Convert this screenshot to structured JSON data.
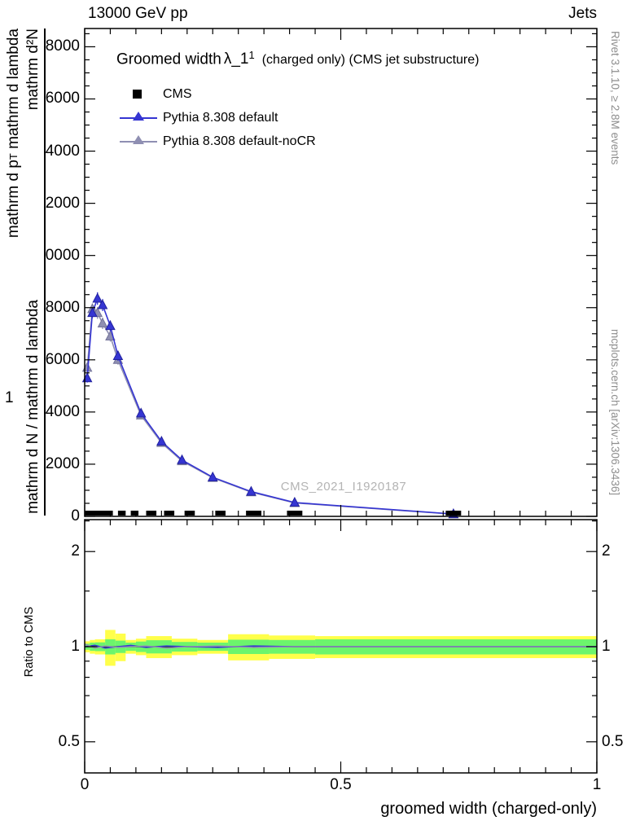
{
  "header": {
    "left": "13000 GeV pp",
    "right": "Jets"
  },
  "title": {
    "prefix": "Groomed width",
    "symbol": "λ_1",
    "sup": "1",
    "suffix": "(charged only) (CMS jet substructure)"
  },
  "legend": {
    "items": [
      {
        "label": "CMS",
        "marker": "square",
        "color": "#000000"
      },
      {
        "label": "Pythia 8.308 default",
        "marker": "triangle-line",
        "color": "#3535d2"
      },
      {
        "label": "Pythia 8.308 default-noCR",
        "marker": "triangle-line",
        "color": "#8f8fb2"
      }
    ]
  },
  "watermark": "CMS_2021_I1920187",
  "side_notes": {
    "top_right": "Rivet 3.1.10, ≥ 2.8M events",
    "bottom_right": "mcplots.cern.ch [arXiv:1306.3436]"
  },
  "axis_labels": {
    "x": "groomed width (charged-only)",
    "ratio_y": "Ratio to CMS",
    "y_numerator": "mathrm d²N",
    "y_den_a": "mathrm d p",
    "y_den_sub": "T",
    "y_den_b": " mathrm d lambda",
    "y_one": "1",
    "y_lower": "mathrm d N / mathrm d lambda"
  },
  "chart_data": {
    "type": "line",
    "title": "Groomed width λ_1^1 (charged only) (CMS jet substructure)",
    "xlabel": "groomed width (charged-only)",
    "ylabel": "1/N mathrm d²N / mathrm d p_T mathrm d lambda",
    "xlim": [
      0,
      1
    ],
    "ylim": [
      0,
      18700
    ],
    "grid": false,
    "legend_position": "top-left",
    "xticks": [
      {
        "v": 0,
        "label": "0"
      },
      {
        "v": 0.5,
        "label": "0.5"
      },
      {
        "v": 1,
        "label": "1"
      }
    ],
    "yticks": [
      {
        "v": 0,
        "label": "0"
      },
      {
        "v": 2000,
        "label": "2000"
      },
      {
        "v": 4000,
        "label": "4000"
      },
      {
        "v": 6000,
        "label": "6000"
      },
      {
        "v": 8000,
        "label": "8000"
      },
      {
        "v": 10000,
        "label": "0000"
      },
      {
        "v": 12000,
        "label": "2000"
      },
      {
        "v": 14000,
        "label": "4000"
      },
      {
        "v": 16000,
        "label": "6000"
      },
      {
        "v": 18000,
        "label": "8000"
      }
    ],
    "series": [
      {
        "name": "CMS",
        "type": "bins",
        "color": "#000000",
        "bins": [
          [
            0.0,
            0.055
          ],
          [
            0.065,
            0.08
          ],
          [
            0.09,
            0.105
          ],
          [
            0.12,
            0.14
          ],
          [
            0.155,
            0.175
          ],
          [
            0.195,
            0.215
          ],
          [
            0.255,
            0.275
          ],
          [
            0.315,
            0.345
          ],
          [
            0.395,
            0.425
          ],
          [
            0.705,
            0.735
          ]
        ],
        "y": 0
      },
      {
        "name": "Pythia 8.308 default",
        "type": "line-marker",
        "color": "#3535d2",
        "edge": "#22229e",
        "x": [
          0.005,
          0.015,
          0.025,
          0.035,
          0.05,
          0.065,
          0.11,
          0.15,
          0.19,
          0.25,
          0.325,
          0.41,
          0.72
        ],
        "y": [
          5300,
          7800,
          8350,
          8100,
          7300,
          6150,
          3950,
          2870,
          2160,
          1500,
          950,
          530,
          90
        ],
        "yerr": [
          170,
          210,
          240,
          230,
          210,
          190,
          140,
          110,
          95,
          75,
          55,
          40,
          18
        ]
      },
      {
        "name": "Pythia 8.308 default-noCR",
        "type": "line-marker",
        "color": "#8f8fb2",
        "edge": "#74749a",
        "x": [
          0.005,
          0.015,
          0.025,
          0.035,
          0.05,
          0.065,
          0.11,
          0.15,
          0.19,
          0.25,
          0.325,
          0.41,
          0.72
        ],
        "y": [
          5700,
          7950,
          7800,
          7400,
          6900,
          6000,
          3870,
          2820,
          2120,
          1480,
          930,
          515,
          85
        ],
        "yerr": [
          170,
          210,
          230,
          220,
          200,
          185,
          135,
          110,
          90,
          75,
          55,
          40,
          18
        ]
      }
    ],
    "ratio": {
      "scale": "log",
      "ylabel": "Ratio to CMS",
      "ylim": [
        0.4,
        2.52
      ],
      "yticks": [
        {
          "v": 2,
          "label": "2"
        },
        {
          "v": 1,
          "label": "1"
        },
        {
          "v": 0.5,
          "label": "0.5"
        }
      ],
      "minor_ticks": [
        0.4,
        0.6,
        0.7,
        0.8,
        0.9,
        1.5,
        2.5
      ],
      "band_colors": {
        "outer": "#ffff4a",
        "inner": "#6cf56c"
      },
      "bands": [
        [
          0.0,
          0.01,
          0.96,
          1.04,
          0.978,
          1.022
        ],
        [
          0.01,
          0.02,
          0.95,
          1.05,
          0.97,
          1.03
        ],
        [
          0.02,
          0.04,
          0.945,
          1.055,
          0.968,
          1.032
        ],
        [
          0.04,
          0.06,
          0.87,
          1.13,
          0.945,
          1.055
        ],
        [
          0.06,
          0.08,
          0.9,
          1.1,
          0.955,
          1.045
        ],
        [
          0.08,
          0.1,
          0.95,
          1.05,
          0.97,
          1.03
        ],
        [
          0.1,
          0.12,
          0.94,
          1.06,
          0.962,
          1.038
        ],
        [
          0.12,
          0.17,
          0.92,
          1.08,
          0.952,
          1.048
        ],
        [
          0.17,
          0.22,
          0.94,
          1.06,
          0.965,
          1.035
        ],
        [
          0.22,
          0.28,
          0.95,
          1.05,
          0.97,
          1.03
        ],
        [
          0.28,
          0.36,
          0.905,
          1.095,
          0.948,
          1.052
        ],
        [
          0.36,
          0.45,
          0.915,
          1.085,
          0.95,
          1.05
        ],
        [
          0.45,
          1.0,
          0.92,
          1.08,
          0.945,
          1.055
        ]
      ],
      "reference_line": 1,
      "lines": [
        {
          "name": "Pythia 8.308 default",
          "color": "#3535d2",
          "x": [
            0.0,
            0.02,
            0.04,
            0.065,
            0.09,
            0.12,
            0.16,
            0.2,
            0.26,
            0.33,
            0.41,
            0.55,
            0.72,
            1.0
          ],
          "r": [
            1.0,
            1.01,
            0.99,
            1.0,
            1.01,
            0.995,
            1.005,
            1.0,
            0.995,
            1.005,
            1.0,
            1.0,
            1.0,
            1.0
          ]
        },
        {
          "name": "Pythia 8.308 default-noCR",
          "color": "#8f8fb2",
          "x": [
            0.0,
            0.02,
            0.04,
            0.065,
            0.09,
            0.12,
            0.16,
            0.2,
            0.26,
            0.33,
            0.41,
            0.55,
            0.72,
            1.0
          ],
          "r": [
            1.02,
            0.99,
            1.005,
            0.995,
            1.0,
            1.005,
            0.99,
            1.0,
            1.005,
            0.995,
            1.0,
            1.0,
            1.0,
            1.0
          ]
        }
      ]
    }
  }
}
